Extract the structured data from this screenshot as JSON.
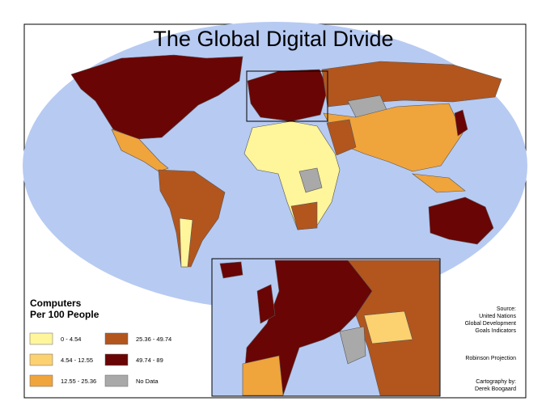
{
  "title": "The Global Digital Divide",
  "legend": {
    "title_lines": [
      "Computers",
      "Per 100 People"
    ],
    "items": [
      {
        "label": "0 - 4.54",
        "color": "#fff59a"
      },
      {
        "label": "4.54 - 12.55",
        "color": "#fcd170"
      },
      {
        "label": "12.55 - 25.36",
        "color": "#f0a43c"
      },
      {
        "label": "25.36 - 49.74",
        "color": "#b2561e"
      },
      {
        "label": "49.74 - 89",
        "color": "#6a0505"
      },
      {
        "label": "No Data",
        "color": "#a9a9a9"
      }
    ]
  },
  "source_lines": [
    "Source:",
    "United Nations",
    "Global Development",
    "Goals Indicators"
  ],
  "projection": "Robinson Projection",
  "credit_lines": [
    "Cartography by:",
    "Derek Boogaard"
  ]
}
